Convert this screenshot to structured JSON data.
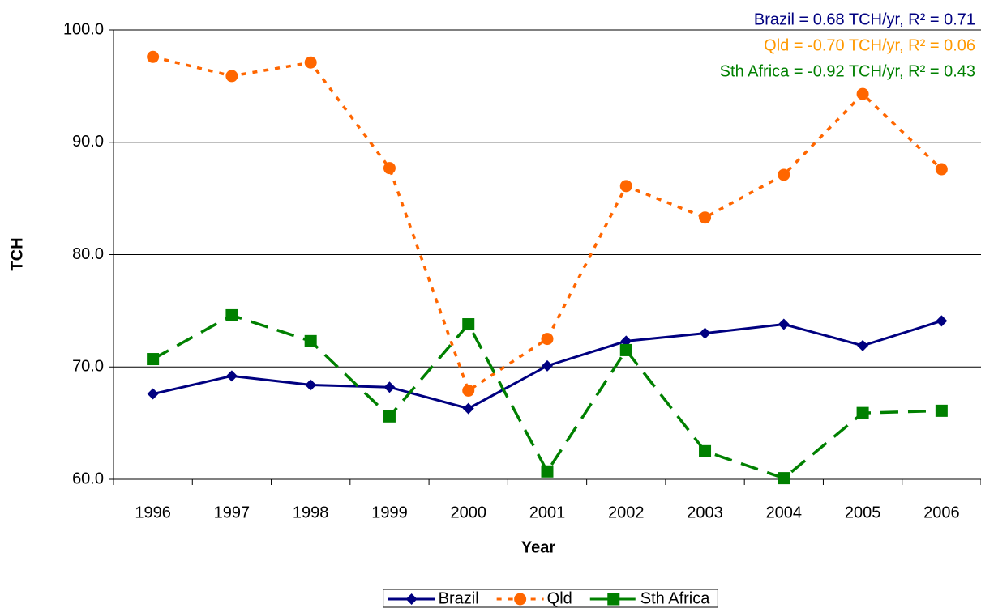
{
  "chart_data": {
    "type": "line",
    "x_label": "Year",
    "y_label": "TCH",
    "categories": [
      "1996",
      "1997",
      "1998",
      "1999",
      "2000",
      "2001",
      "2002",
      "2003",
      "2004",
      "2005",
      "2006"
    ],
    "series": [
      {
        "name": "Brazil",
        "color": "#000080",
        "dash": "solid",
        "marker": "diamond",
        "values": [
          67.6,
          69.2,
          68.4,
          68.2,
          66.3,
          70.1,
          72.3,
          73.0,
          73.8,
          71.9,
          74.1
        ]
      },
      {
        "name": "Qld",
        "color": "#ff6600",
        "dash": "dotted",
        "marker": "circle",
        "values": [
          97.6,
          95.9,
          97.1,
          87.7,
          67.9,
          72.5,
          86.1,
          83.3,
          87.1,
          94.3,
          87.6
        ]
      },
      {
        "name": "Sth Africa",
        "color": "#008000",
        "dash": "dashed",
        "marker": "square",
        "values": [
          70.7,
          74.6,
          72.3,
          65.6,
          73.8,
          60.7,
          71.5,
          62.5,
          60.1,
          65.9,
          66.1
        ]
      }
    ],
    "annotations": [
      {
        "text": "Brazil = 0.68 TCH/yr, R² = 0.71",
        "color": "#000080"
      },
      {
        "text": "Qld = -0.70 TCH/yr, R² = 0.06",
        "color": "#ff9900"
      },
      {
        "text": "Sth Africa = -0.92 TCH/yr, R² = 0.43",
        "color": "#008000"
      }
    ],
    "ylim": [
      60,
      100
    ],
    "yticks": [
      {
        "value": 60,
        "label": "60.0"
      },
      {
        "value": 70,
        "label": "70.0"
      },
      {
        "value": 80,
        "label": "80.0"
      },
      {
        "value": 90,
        "label": "90.0"
      },
      {
        "value": 100,
        "label": "100.0"
      }
    ],
    "grid": true,
    "legend": "bottom"
  }
}
